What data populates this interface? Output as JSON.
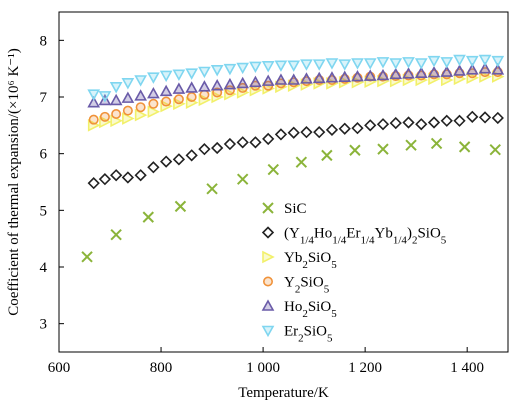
{
  "chart_data": {
    "type": "scatter",
    "xlabel": "Temperature/K",
    "ylabel": "Coefficient of thermal expansion/(×10⁶ K⁻¹)",
    "xlim": [
      600,
      1480
    ],
    "ylim": [
      2.5,
      8.5
    ],
    "x_ticks": [
      600,
      800,
      1000,
      1200,
      1400
    ],
    "x_tick_labels": [
      "600",
      "800",
      "1 000",
      "1 200",
      "1 400"
    ],
    "y_ticks": [
      3,
      4,
      5,
      6,
      7,
      8
    ],
    "y_tick_labels": [
      "3",
      "4",
      "5",
      "6",
      "7",
      "8"
    ],
    "grid": false,
    "legend_position": "lower-right",
    "series": [
      {
        "name": "SiC",
        "marker": "x",
        "color": "#8bb43a",
        "x": [
          655,
          712,
          775,
          838,
          900,
          960,
          1020,
          1075,
          1125,
          1180,
          1235,
          1290,
          1340,
          1395,
          1455
        ],
        "y": [
          4.18,
          4.57,
          4.88,
          5.07,
          5.38,
          5.55,
          5.72,
          5.85,
          5.97,
          6.06,
          6.08,
          6.15,
          6.18,
          6.12,
          6.07
        ]
      },
      {
        "name": "(Y1/4Ho1/4Er1/4Yb1/4)2SiO5",
        "marker": "diamond",
        "color": "#222222",
        "x": [
          668,
          690,
          712,
          735,
          760,
          785,
          810,
          835,
          860,
          885,
          910,
          935,
          960,
          985,
          1010,
          1035,
          1060,
          1085,
          1110,
          1135,
          1160,
          1185,
          1210,
          1235,
          1260,
          1285,
          1310,
          1335,
          1360,
          1385,
          1410,
          1435,
          1460
        ],
        "y": [
          5.48,
          5.55,
          5.62,
          5.58,
          5.62,
          5.76,
          5.86,
          5.9,
          5.97,
          6.08,
          6.1,
          6.17,
          6.2,
          6.2,
          6.26,
          6.34,
          6.37,
          6.38,
          6.38,
          6.42,
          6.44,
          6.45,
          6.5,
          6.52,
          6.54,
          6.55,
          6.52,
          6.55,
          6.58,
          6.58,
          6.65,
          6.64,
          6.63
        ]
      },
      {
        "name": "Yb2SiO5",
        "marker": "triangle-right",
        "color": "#f2f06a",
        "x": [
          668,
          690,
          712,
          735,
          760,
          785,
          810,
          835,
          860,
          885,
          910,
          935,
          960,
          985,
          1010,
          1035,
          1060,
          1085,
          1110,
          1135,
          1160,
          1185,
          1210,
          1235,
          1260,
          1285,
          1310,
          1335,
          1360,
          1385,
          1410,
          1435,
          1460
        ],
        "y": [
          6.5,
          6.56,
          6.58,
          6.62,
          6.68,
          6.74,
          6.84,
          6.88,
          6.9,
          6.95,
          7.0,
          7.05,
          7.08,
          7.12,
          7.15,
          7.18,
          7.2,
          7.22,
          7.24,
          7.24,
          7.26,
          7.26,
          7.27,
          7.28,
          7.28,
          7.3,
          7.3,
          7.32,
          7.3,
          7.32,
          7.34,
          7.36,
          7.36
        ]
      },
      {
        "name": "Y2SiO5",
        "marker": "circle",
        "color": "#f0923a",
        "x": [
          668,
          690,
          712,
          735,
          760,
          785,
          810,
          835,
          860,
          885,
          910,
          935,
          960,
          985,
          1010,
          1035,
          1060,
          1085,
          1110,
          1135,
          1160,
          1185,
          1210,
          1235,
          1260,
          1285,
          1310,
          1335,
          1360,
          1385,
          1410,
          1435,
          1460
        ],
        "y": [
          6.6,
          6.65,
          6.7,
          6.76,
          6.82,
          6.88,
          6.92,
          6.96,
          7.0,
          7.04,
          7.08,
          7.12,
          7.16,
          7.2,
          7.2,
          7.24,
          7.26,
          7.28,
          7.3,
          7.3,
          7.32,
          7.34,
          7.36,
          7.36,
          7.37,
          7.38,
          7.38,
          7.4,
          7.4,
          7.42,
          7.42,
          7.44,
          7.44
        ]
      },
      {
        "name": "Ho2SiO5",
        "marker": "triangle-up",
        "color": "#6a5ba8",
        "x": [
          668,
          690,
          712,
          735,
          760,
          785,
          810,
          835,
          860,
          885,
          910,
          935,
          960,
          985,
          1010,
          1035,
          1060,
          1085,
          1110,
          1135,
          1160,
          1185,
          1210,
          1235,
          1260,
          1285,
          1310,
          1335,
          1360,
          1385,
          1410,
          1435,
          1460
        ],
        "y": [
          6.9,
          6.94,
          6.94,
          6.98,
          7.02,
          7.06,
          7.1,
          7.14,
          7.16,
          7.18,
          7.2,
          7.22,
          7.24,
          7.26,
          7.28,
          7.3,
          7.3,
          7.32,
          7.33,
          7.34,
          7.35,
          7.36,
          7.37,
          7.38,
          7.4,
          7.41,
          7.42,
          7.43,
          7.44,
          7.46,
          7.48,
          7.5,
          7.48
        ]
      },
      {
        "name": "Er2SiO5",
        "marker": "triangle-down",
        "color": "#7fd6f0",
        "x": [
          668,
          690,
          712,
          735,
          760,
          785,
          810,
          835,
          860,
          885,
          910,
          935,
          960,
          985,
          1010,
          1035,
          1060,
          1085,
          1110,
          1135,
          1160,
          1185,
          1210,
          1235,
          1260,
          1285,
          1310,
          1335,
          1360,
          1385,
          1410,
          1435,
          1460
        ],
        "y": [
          7.05,
          7.02,
          7.18,
          7.25,
          7.3,
          7.35,
          7.38,
          7.4,
          7.42,
          7.45,
          7.48,
          7.5,
          7.52,
          7.54,
          7.55,
          7.56,
          7.56,
          7.58,
          7.58,
          7.6,
          7.58,
          7.6,
          7.6,
          7.62,
          7.6,
          7.62,
          7.6,
          7.64,
          7.62,
          7.66,
          7.64,
          7.66,
          7.64
        ]
      }
    ]
  }
}
